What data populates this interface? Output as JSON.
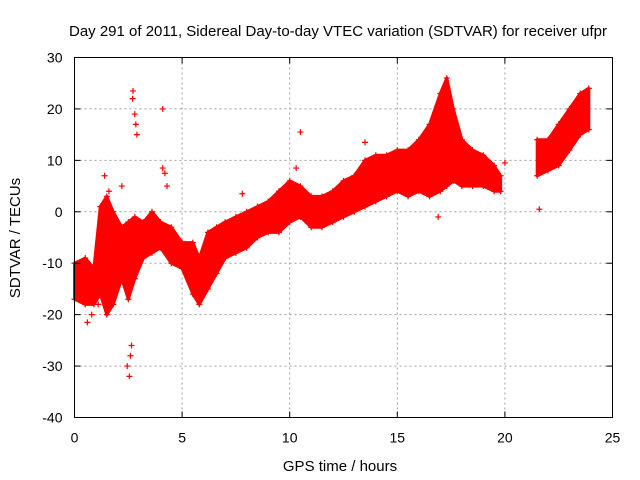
{
  "chart_data": {
    "type": "scatter",
    "title": "Day 291 of 2011, Sidereal Day-to-day VTEC variation (SDTVAR) for receiver ufpr",
    "xlabel": "GPS time / hours",
    "ylabel": "SDTVAR / TECUs",
    "xlim": [
      0,
      25
    ],
    "ylim": [
      -40,
      30
    ],
    "xticks": [
      0,
      5,
      10,
      15,
      20,
      25
    ],
    "yticks": [
      -40,
      -30,
      -20,
      -10,
      0,
      10,
      20,
      30
    ],
    "grid": true,
    "marker": "+",
    "color": "#ff0000",
    "series": [
      {
        "name": "SDTVAR",
        "band": [
          [
            0.0,
            -17,
            -10
          ],
          [
            0.5,
            -18,
            -9
          ],
          [
            0.9,
            -18,
            -11
          ],
          [
            1.2,
            -16,
            1
          ],
          [
            1.5,
            -20,
            3
          ],
          [
            1.8,
            -18,
            0
          ],
          [
            2.2,
            -13,
            -3
          ],
          [
            2.5,
            -17,
            -2
          ],
          [
            2.8,
            -13,
            -1
          ],
          [
            3.2,
            -9,
            -2
          ],
          [
            3.6,
            -8,
            0
          ],
          [
            4.0,
            -7,
            -2
          ],
          [
            4.5,
            -10,
            -3
          ],
          [
            5.0,
            -11,
            -6
          ],
          [
            5.5,
            -16,
            -6
          ],
          [
            5.8,
            -18,
            -9
          ],
          [
            6.2,
            -15,
            -4
          ],
          [
            6.6,
            -12,
            -3
          ],
          [
            7.0,
            -9,
            -2
          ],
          [
            7.5,
            -8,
            -1
          ],
          [
            8.0,
            -7,
            0
          ],
          [
            8.5,
            -5,
            1
          ],
          [
            9.0,
            -4,
            2
          ],
          [
            9.5,
            -4,
            4
          ],
          [
            10.0,
            -2,
            6
          ],
          [
            10.5,
            -1,
            5
          ],
          [
            11.0,
            -3,
            3
          ],
          [
            11.5,
            -3,
            3
          ],
          [
            12.0,
            -2,
            4
          ],
          [
            12.5,
            -1,
            6
          ],
          [
            13.0,
            0,
            7
          ],
          [
            13.5,
            1,
            10
          ],
          [
            14.0,
            2,
            11
          ],
          [
            14.5,
            3,
            11
          ],
          [
            15.0,
            4,
            12
          ],
          [
            15.5,
            3,
            12
          ],
          [
            16.0,
            4,
            14
          ],
          [
            16.5,
            3,
            17
          ],
          [
            17.0,
            4,
            23
          ],
          [
            17.3,
            5,
            26
          ],
          [
            17.6,
            6,
            20
          ],
          [
            18.0,
            5,
            14
          ],
          [
            18.5,
            5,
            12
          ],
          [
            19.0,
            5,
            11
          ],
          [
            19.5,
            4,
            9
          ],
          [
            19.8,
            4,
            7
          ]
        ],
        "band2": [
          [
            21.5,
            7,
            14
          ],
          [
            22.0,
            8,
            14
          ],
          [
            22.5,
            9,
            17
          ],
          [
            23.0,
            12,
            20
          ],
          [
            23.5,
            15,
            23
          ],
          [
            23.9,
            16,
            24
          ]
        ],
        "scatter": [
          [
            0.6,
            -21.5
          ],
          [
            0.8,
            -20
          ],
          [
            1.1,
            -18
          ],
          [
            1.4,
            7
          ],
          [
            1.6,
            4
          ],
          [
            2.2,
            5
          ],
          [
            2.45,
            -30
          ],
          [
            2.55,
            -32
          ],
          [
            2.6,
            -28
          ],
          [
            2.65,
            -26
          ],
          [
            2.7,
            22
          ],
          [
            2.72,
            23.5
          ],
          [
            2.8,
            19
          ],
          [
            2.85,
            17
          ],
          [
            2.9,
            15
          ],
          [
            4.1,
            20
          ],
          [
            4.1,
            8.5
          ],
          [
            4.2,
            7.5
          ],
          [
            4.3,
            5
          ],
          [
            7.8,
            3.5
          ],
          [
            10.3,
            8.5
          ],
          [
            10.5,
            15.5
          ],
          [
            13.5,
            13.5
          ],
          [
            16.9,
            -1
          ],
          [
            20.0,
            9.5
          ],
          [
            21.6,
            0.5
          ]
        ]
      }
    ]
  }
}
